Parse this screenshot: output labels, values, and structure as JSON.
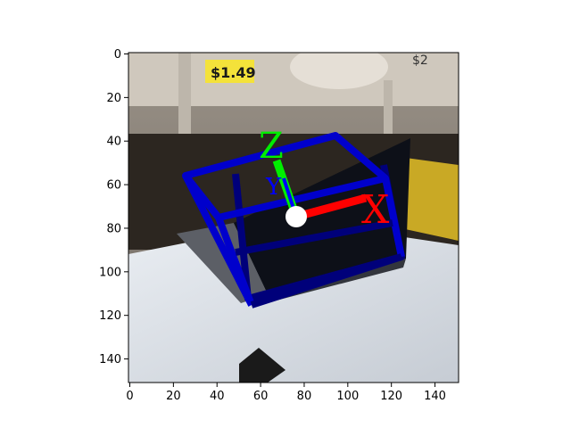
{
  "photo": {
    "description_labels": {
      "price_tag": "$1.49",
      "price_tag_right": "$2"
    },
    "overlay": {
      "box_color": "#0000cc",
      "box_dark_color": "#00007a",
      "axis_x_color": "#ff0000",
      "axis_y_color": "#0000ff",
      "axis_z_color": "#00ff00",
      "axis_x_label": "X",
      "axis_y_label": "Y",
      "axis_z_label": "Z",
      "center_color": "#ffffff"
    }
  },
  "axes": {
    "x_ticks": [
      "0",
      "20",
      "40",
      "60",
      "80",
      "100",
      "120",
      "140"
    ],
    "y_ticks": [
      "0",
      "20",
      "40",
      "60",
      "80",
      "100",
      "120",
      "140"
    ],
    "xlim": [
      0,
      150
    ],
    "ylim": [
      150,
      0
    ]
  }
}
